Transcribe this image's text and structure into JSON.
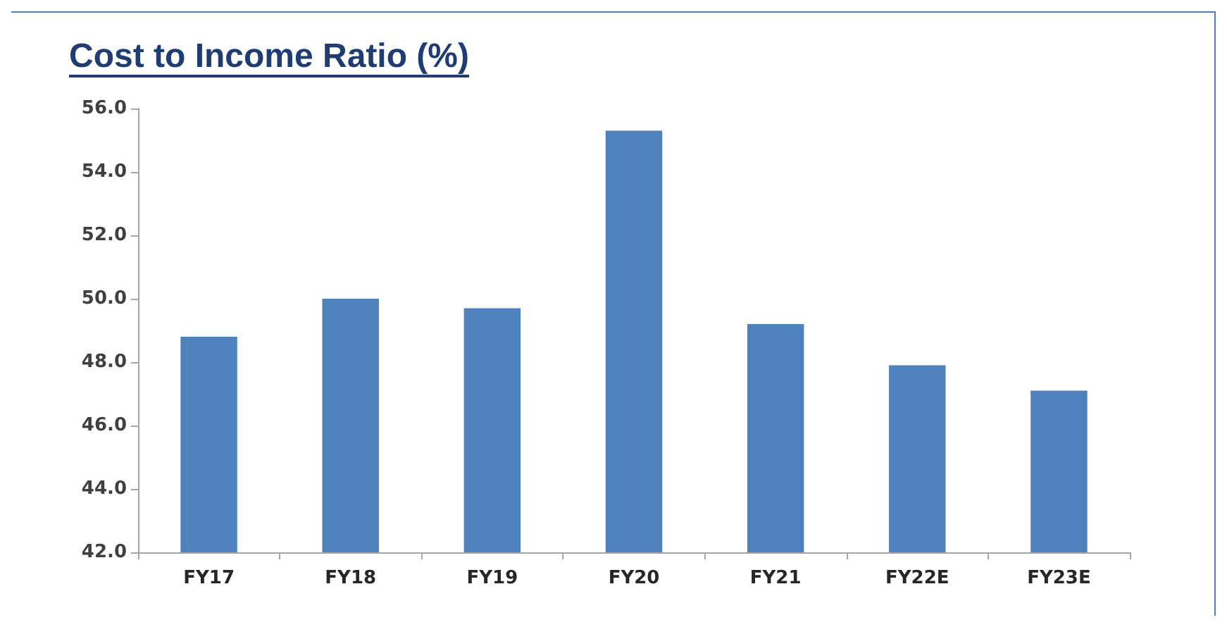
{
  "chart_data": {
    "type": "bar",
    "title": "Cost to Income Ratio (%)",
    "categories": [
      "FY17",
      "FY18",
      "FY19",
      "FY20",
      "FY21",
      "FY22E",
      "FY23E"
    ],
    "values": [
      48.8,
      50.0,
      49.7,
      55.3,
      49.2,
      47.9,
      47.1
    ],
    "color": "#4f81bd",
    "ylim": [
      42,
      56
    ],
    "yticks": [
      {
        "value": 42,
        "label": "42.0"
      },
      {
        "value": 44,
        "label": "44.0"
      },
      {
        "value": 46,
        "label": "46.0"
      },
      {
        "value": 48,
        "label": "48.0"
      },
      {
        "value": 50,
        "label": "50.0"
      },
      {
        "value": 52,
        "label": "52.0"
      },
      {
        "value": 54,
        "label": "54.0"
      },
      {
        "value": 56,
        "label": "56.0"
      }
    ],
    "grid": false
  }
}
